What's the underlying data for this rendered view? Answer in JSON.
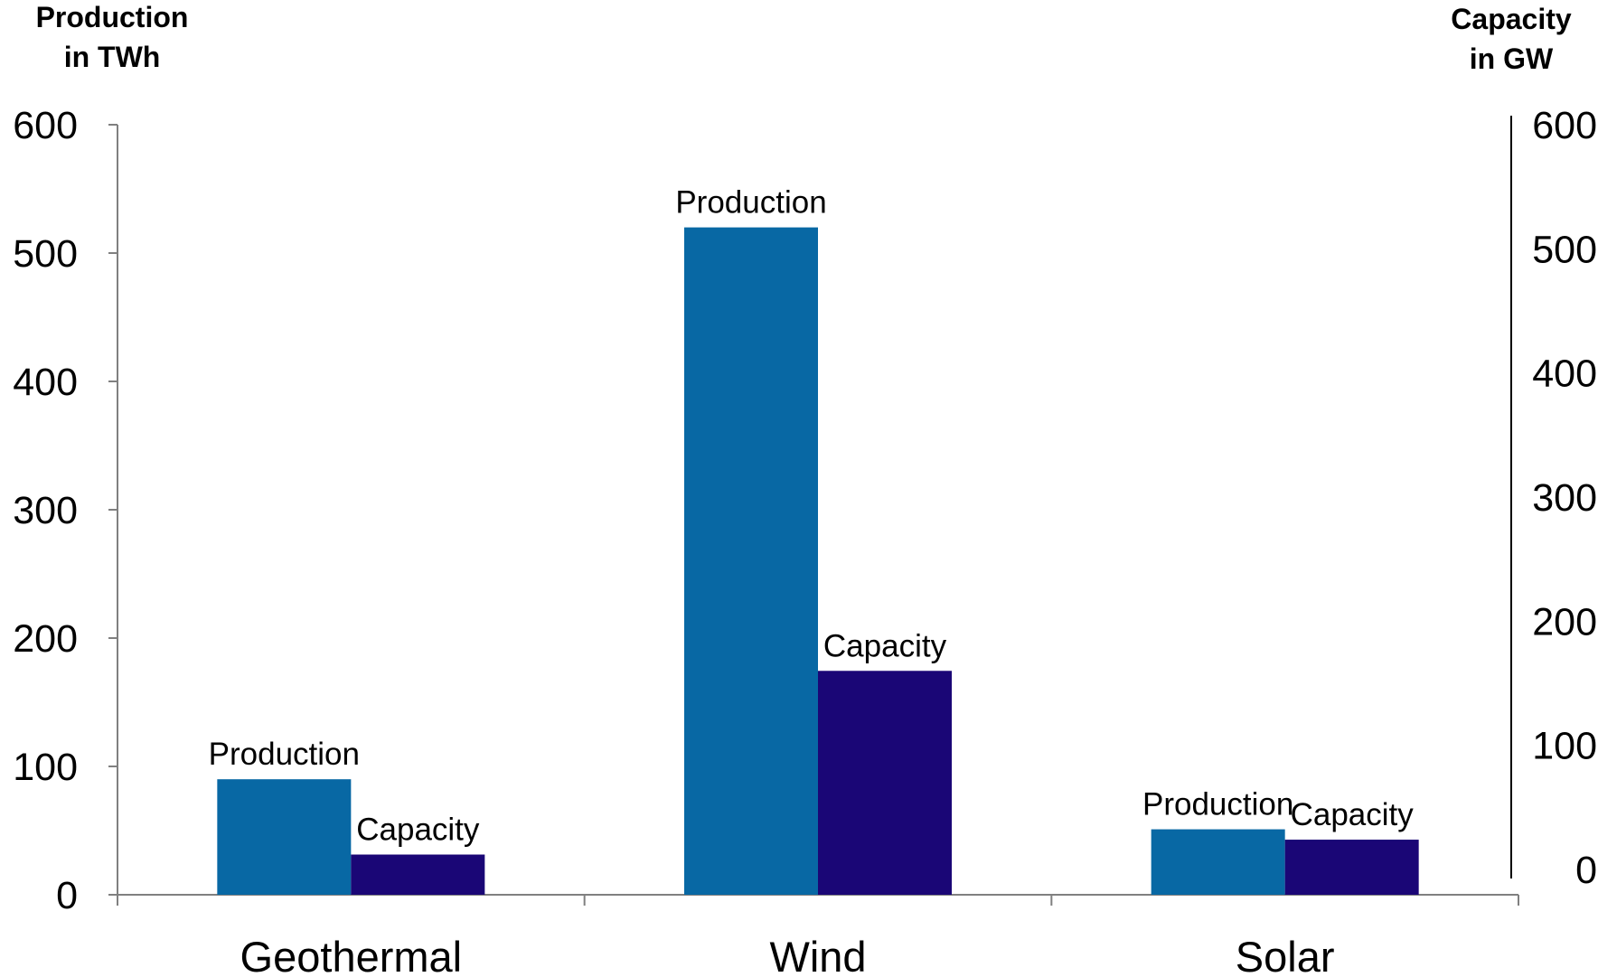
{
  "chart_data": {
    "type": "bar",
    "categories": [
      "Geothermal",
      "Wind",
      "Solar"
    ],
    "series": [
      {
        "name": "Production",
        "axis": "left",
        "color": "#0868A4",
        "values": [
          90,
          520,
          51
        ]
      },
      {
        "name": "Capacity",
        "axis": "right",
        "color": "#1A0676",
        "values": [
          12,
          160,
          24
        ]
      }
    ],
    "left_axis": {
      "title_lines": [
        "Production",
        "in TWh"
      ],
      "ylim": [
        0,
        600
      ],
      "ticks": [
        "0",
        "100",
        "200",
        "300",
        "400",
        "500",
        "600"
      ]
    },
    "right_axis": {
      "title_lines": [
        "Capacity",
        "in GW"
      ],
      "ylim": [
        0,
        600
      ],
      "ticks": [
        "0",
        "100",
        "200",
        "300",
        "400",
        "500",
        "600"
      ]
    },
    "grid": false,
    "legend": "none"
  }
}
